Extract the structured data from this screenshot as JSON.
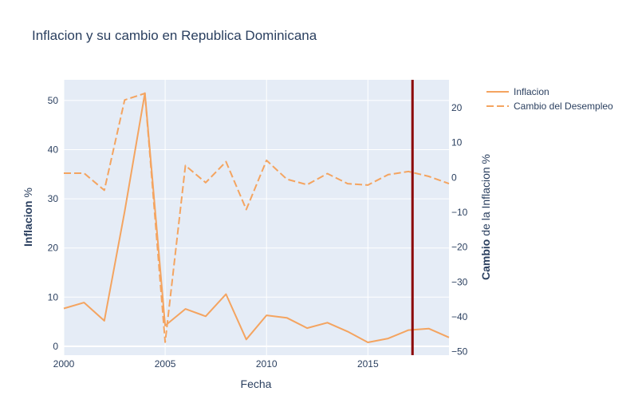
{
  "chart_data": {
    "type": "line",
    "title": "Inflacion y su cambio en Republica Dominicana",
    "xlabel": "Fecha",
    "ylabel_bold": "Inflacion",
    "ylabel_rest": " %",
    "y2label_bold": "Cambio",
    "y2label_rest": " de la Inflacion %",
    "xlim": [
      2000,
      2019
    ],
    "ylim": [
      -1.8,
      54.2
    ],
    "y2lim": [
      -51,
      28
    ],
    "xticks": [
      2000,
      2005,
      2010,
      2015
    ],
    "yticks": [
      0,
      10,
      20,
      30,
      40,
      50
    ],
    "y2ticks": [
      -50,
      -40,
      -30,
      -20,
      -10,
      0,
      10,
      20
    ],
    "vline_x": 2017.2,
    "vline_color": "#8b0000",
    "line_color": "#f4a460",
    "grid": true,
    "legend_position": "top-right",
    "series": [
      {
        "name": "Inflacion",
        "axis": "y",
        "dash": "solid",
        "x": [
          2000,
          2001,
          2002,
          2003,
          2004,
          2005,
          2006,
          2007,
          2008,
          2009,
          2010,
          2011,
          2012,
          2013,
          2014,
          2015,
          2016,
          2017,
          2018,
          2019
        ],
        "values": [
          7.7,
          8.9,
          5.2,
          27.4,
          51.5,
          4.2,
          7.6,
          6.1,
          10.6,
          1.4,
          6.3,
          5.8,
          3.7,
          4.8,
          3.0,
          0.8,
          1.6,
          3.3,
          3.6,
          1.8
        ]
      },
      {
        "name": "Cambio del Desempleo",
        "axis": "y2",
        "dash": "dash",
        "x": [
          2000,
          2001,
          2002,
          2003,
          2004,
          2005,
          2006,
          2007,
          2008,
          2009,
          2010,
          2011,
          2012,
          2013,
          2014,
          2015,
          2016,
          2017,
          2018,
          2019
        ],
        "values": [
          1.2,
          1.2,
          -3.7,
          22.2,
          24.1,
          -47.3,
          3.4,
          -1.5,
          4.5,
          -9.2,
          4.9,
          -0.5,
          -2.1,
          1.1,
          -1.8,
          -2.2,
          0.8,
          1.7,
          0.3,
          -1.8
        ]
      }
    ]
  }
}
